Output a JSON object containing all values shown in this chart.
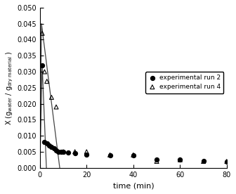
{
  "run2_x": [
    1,
    2,
    3,
    4,
    5,
    6,
    7,
    8,
    9,
    10,
    12,
    15,
    20,
    30,
    40,
    50,
    60,
    70,
    80
  ],
  "run2_y": [
    0.032,
    0.008,
    0.0075,
    0.007,
    0.0065,
    0.006,
    0.0055,
    0.005,
    0.005,
    0.005,
    0.0048,
    0.0045,
    0.004,
    0.0038,
    0.0038,
    0.0025,
    0.0025,
    0.0022,
    0.002
  ],
  "run4_x": [
    1,
    2,
    3,
    5,
    7,
    10,
    15,
    20,
    30,
    40,
    50,
    60,
    70,
    80
  ],
  "run4_y": [
    0.042,
    0.03,
    0.027,
    0.022,
    0.019,
    0.005,
    0.005,
    0.005,
    0.004,
    0.004,
    0.002,
    0.0025,
    0.002,
    0.002
  ],
  "line2_x": [
    0,
    1,
    2.8
  ],
  "line2_y": [
    0.0,
    0.032,
    0.0
  ],
  "line4_x": [
    0,
    0.7,
    8.5
  ],
  "line4_y": [
    0.0,
    0.045,
    0.0
  ],
  "xlim": [
    0,
    80
  ],
  "ylim": [
    0.0,
    0.05
  ],
  "xlabel": "time (min)",
  "ylabel": "X (g$_\\mathrm{water}$ / g$_\\mathrm{dry\\ material}$ )",
  "legend_labels": [
    "experimental run 2",
    "experimental run 4"
  ],
  "yticks": [
    0.0,
    0.005,
    0.01,
    0.015,
    0.02,
    0.025,
    0.03,
    0.035,
    0.04,
    0.045,
    0.05
  ],
  "xticks": [
    0,
    20,
    40,
    60,
    80
  ],
  "bg_color": "#ffffff"
}
